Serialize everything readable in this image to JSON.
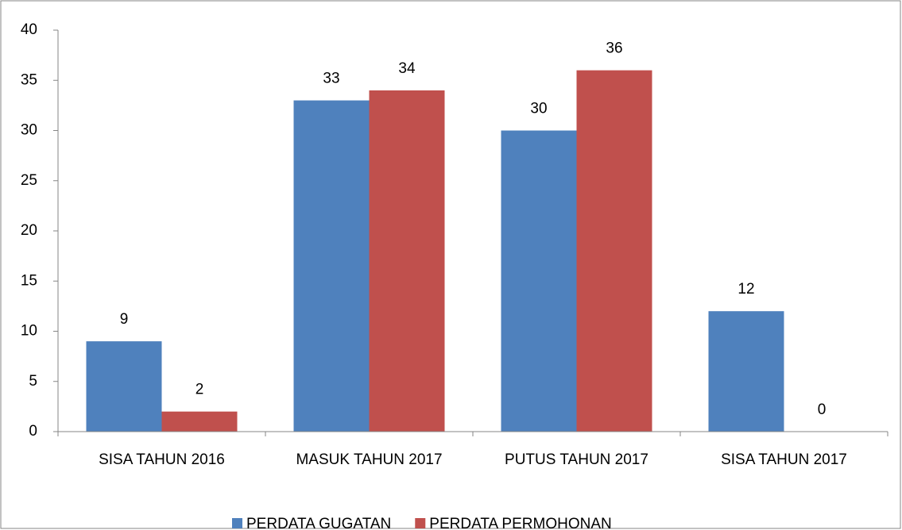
{
  "chart_data": {
    "type": "bar",
    "categories": [
      "SISA TAHUN 2016",
      "MASUK TAHUN 2017",
      "PUTUS TAHUN 2017",
      "SISA TAHUN 2017"
    ],
    "series": [
      {
        "name": "PERDATA GUGATAN",
        "color": "#4f81bd",
        "values": [
          9,
          33,
          30,
          12
        ]
      },
      {
        "name": "PERDATA PERMOHONAN",
        "color": "#c0504d",
        "values": [
          2,
          34,
          36,
          0
        ]
      }
    ],
    "ylim": [
      0,
      40
    ],
    "yticks": [
      0,
      5,
      10,
      15,
      20,
      25,
      30,
      35,
      40
    ],
    "grid": false,
    "legend": "bottom"
  }
}
